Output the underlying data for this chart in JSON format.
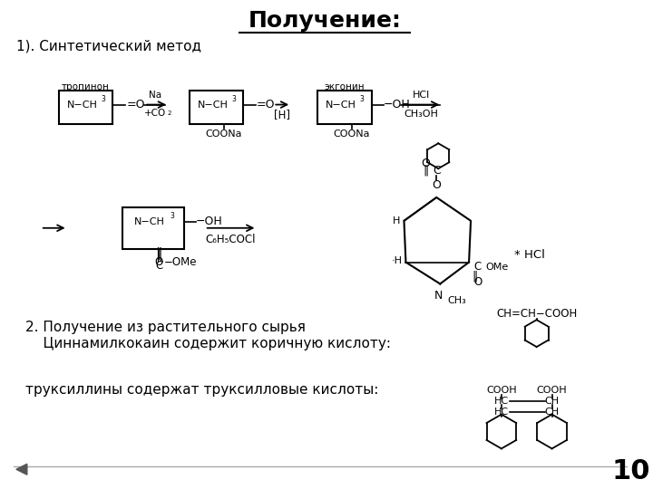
{
  "title": "Получение:",
  "title_fontsize": 18,
  "bg_color": "#ffffff",
  "text_color": "#000000",
  "section1_label": "1). Синтетический метод",
  "section2_line1": "2. Получение из растительного сырья",
  "section2_line2": "    Циннамилкокаин содержит коричную кислоту:",
  "section3_label": "труксиллины содержат труксилловые кислоты:",
  "slide_number": "10"
}
